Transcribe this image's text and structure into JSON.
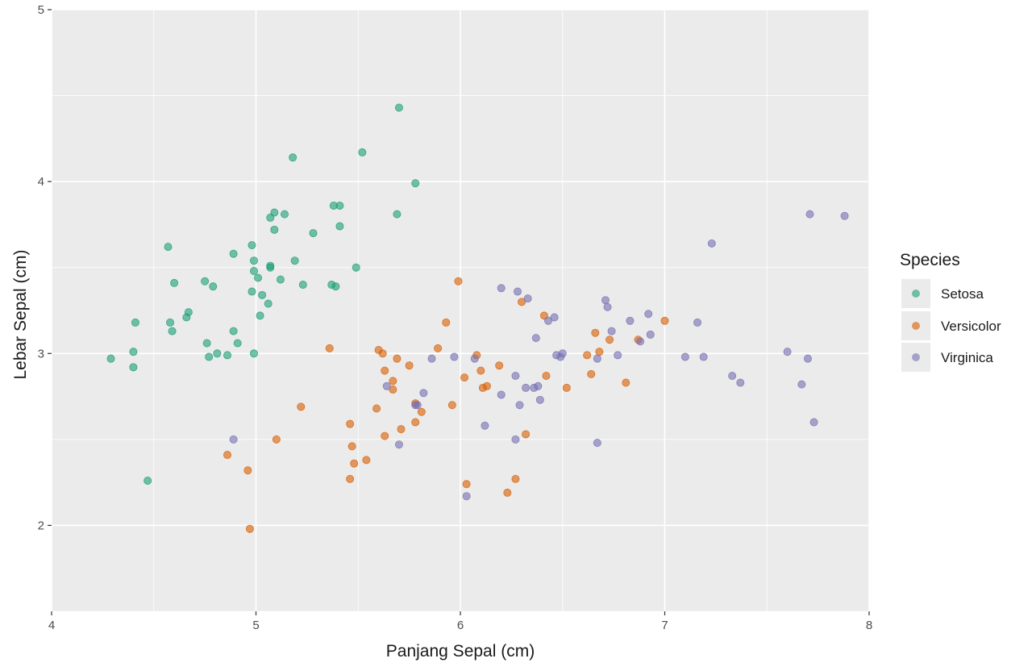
{
  "chart_data": {
    "type": "scatter",
    "xlabel": "Panjang Sepal (cm)",
    "ylabel": "Lebar Sepal (cm)",
    "xlim": [
      4,
      8
    ],
    "ylim": [
      1.5,
      5
    ],
    "xticks": [
      4,
      5,
      6,
      7,
      8
    ],
    "yticks": [
      2,
      3,
      4,
      5
    ],
    "grid": true,
    "legend": {
      "title": "Species",
      "position": "right"
    },
    "series": [
      {
        "name": "Setosa",
        "color": "#1b9e77",
        "points": [
          [
            5.7,
            4.43
          ],
          [
            5.52,
            4.17
          ],
          [
            5.18,
            4.14
          ],
          [
            5.78,
            3.99
          ],
          [
            5.38,
            3.86
          ],
          [
            5.41,
            3.86
          ],
          [
            5.09,
            3.82
          ],
          [
            5.14,
            3.81
          ],
          [
            5.07,
            3.79
          ],
          [
            5.69,
            3.81
          ],
          [
            5.41,
            3.74
          ],
          [
            5.09,
            3.72
          ],
          [
            5.28,
            3.7
          ],
          [
            4.57,
            3.62
          ],
          [
            4.98,
            3.63
          ],
          [
            4.89,
            3.58
          ],
          [
            5.19,
            3.54
          ],
          [
            4.99,
            3.54
          ],
          [
            5.07,
            3.5
          ],
          [
            5.07,
            3.51
          ],
          [
            5.49,
            3.5
          ],
          [
            4.99,
            3.48
          ],
          [
            5.01,
            3.44
          ],
          [
            5.12,
            3.43
          ],
          [
            4.75,
            3.42
          ],
          [
            4.6,
            3.41
          ],
          [
            4.79,
            3.39
          ],
          [
            5.23,
            3.4
          ],
          [
            5.37,
            3.4
          ],
          [
            5.39,
            3.39
          ],
          [
            4.98,
            3.36
          ],
          [
            5.03,
            3.34
          ],
          [
            5.06,
            3.29
          ],
          [
            4.67,
            3.24
          ],
          [
            4.66,
            3.21
          ],
          [
            5.02,
            3.22
          ],
          [
            4.41,
            3.18
          ],
          [
            4.58,
            3.18
          ],
          [
            4.59,
            3.13
          ],
          [
            4.89,
            3.13
          ],
          [
            4.76,
            3.06
          ],
          [
            4.91,
            3.06
          ],
          [
            4.4,
            3.01
          ],
          [
            4.81,
            3.0
          ],
          [
            4.99,
            3.0
          ],
          [
            4.77,
            2.98
          ],
          [
            4.86,
            2.99
          ],
          [
            4.29,
            2.97
          ],
          [
            4.4,
            2.92
          ],
          [
            4.47,
            2.26
          ]
        ]
      },
      {
        "name": "Versicolor",
        "color": "#d95f02",
        "points": [
          [
            5.99,
            3.42
          ],
          [
            6.3,
            3.3
          ],
          [
            6.41,
            3.22
          ],
          [
            5.93,
            3.18
          ],
          [
            7.0,
            3.19
          ],
          [
            6.66,
            3.12
          ],
          [
            6.73,
            3.08
          ],
          [
            6.87,
            3.08
          ],
          [
            5.36,
            3.03
          ],
          [
            5.89,
            3.03
          ],
          [
            5.6,
            3.02
          ],
          [
            5.62,
            3.0
          ],
          [
            6.08,
            2.99
          ],
          [
            6.68,
            3.01
          ],
          [
            6.62,
            2.99
          ],
          [
            5.69,
            2.97
          ],
          [
            5.75,
            2.93
          ],
          [
            6.19,
            2.93
          ],
          [
            5.63,
            2.9
          ],
          [
            6.1,
            2.9
          ],
          [
            6.02,
            2.86
          ],
          [
            6.42,
            2.87
          ],
          [
            6.64,
            2.88
          ],
          [
            5.67,
            2.84
          ],
          [
            6.81,
            2.83
          ],
          [
            6.11,
            2.8
          ],
          [
            6.13,
            2.81
          ],
          [
            6.52,
            2.8
          ],
          [
            5.67,
            2.79
          ],
          [
            5.78,
            2.71
          ],
          [
            5.96,
            2.7
          ],
          [
            5.22,
            2.69
          ],
          [
            5.59,
            2.68
          ],
          [
            5.81,
            2.66
          ],
          [
            5.78,
            2.6
          ],
          [
            5.46,
            2.59
          ],
          [
            5.71,
            2.56
          ],
          [
            6.32,
            2.53
          ],
          [
            5.63,
            2.52
          ],
          [
            5.1,
            2.5
          ],
          [
            5.47,
            2.46
          ],
          [
            4.86,
            2.41
          ],
          [
            5.54,
            2.38
          ],
          [
            5.48,
            2.36
          ],
          [
            4.96,
            2.32
          ],
          [
            5.46,
            2.27
          ],
          [
            6.27,
            2.27
          ],
          [
            6.03,
            2.24
          ],
          [
            6.23,
            2.19
          ],
          [
            4.97,
            1.98
          ]
        ]
      },
      {
        "name": "Virginica",
        "color": "#7570b3",
        "points": [
          [
            7.71,
            3.81
          ],
          [
            7.88,
            3.8
          ],
          [
            7.23,
            3.64
          ],
          [
            6.2,
            3.38
          ],
          [
            6.28,
            3.36
          ],
          [
            6.33,
            3.32
          ],
          [
            6.71,
            3.31
          ],
          [
            6.72,
            3.27
          ],
          [
            6.92,
            3.23
          ],
          [
            6.46,
            3.21
          ],
          [
            6.43,
            3.19
          ],
          [
            6.83,
            3.19
          ],
          [
            7.16,
            3.18
          ],
          [
            6.74,
            3.13
          ],
          [
            6.93,
            3.11
          ],
          [
            6.37,
            3.09
          ],
          [
            6.88,
            3.07
          ],
          [
            7.6,
            3.01
          ],
          [
            6.5,
            3.0
          ],
          [
            6.47,
            2.99
          ],
          [
            6.49,
            2.98
          ],
          [
            7.1,
            2.98
          ],
          [
            7.19,
            2.98
          ],
          [
            6.77,
            2.99
          ],
          [
            5.97,
            2.98
          ],
          [
            6.07,
            2.97
          ],
          [
            6.67,
            2.97
          ],
          [
            7.7,
            2.97
          ],
          [
            5.86,
            2.97
          ],
          [
            6.27,
            2.87
          ],
          [
            7.33,
            2.87
          ],
          [
            7.37,
            2.83
          ],
          [
            7.67,
            2.82
          ],
          [
            5.64,
            2.81
          ],
          [
            6.36,
            2.8
          ],
          [
            6.38,
            2.81
          ],
          [
            6.32,
            2.8
          ],
          [
            5.82,
            2.77
          ],
          [
            6.2,
            2.76
          ],
          [
            6.39,
            2.73
          ],
          [
            5.78,
            2.7
          ],
          [
            5.79,
            2.7
          ],
          [
            6.29,
            2.7
          ],
          [
            6.12,
            2.58
          ],
          [
            7.73,
            2.6
          ],
          [
            4.89,
            2.5
          ],
          [
            6.27,
            2.5
          ],
          [
            6.67,
            2.48
          ],
          [
            5.7,
            2.47
          ],
          [
            6.03,
            2.17
          ]
        ]
      }
    ]
  }
}
